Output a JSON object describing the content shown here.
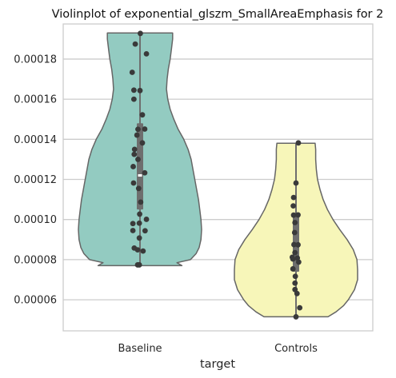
{
  "chart_data": {
    "type": "violin",
    "title": "Violinplot of exponential_glszm_SmallAreaEmphasis for 2",
    "xlabel": "target",
    "ylabel": "",
    "categories": [
      "Baseline",
      "Controls"
    ],
    "ylim": [
      4.45e-05,
      0.0001975
    ],
    "yticks": [
      6e-05,
      8e-05,
      0.0001,
      0.00012,
      0.00014,
      0.00016,
      0.00018
    ],
    "ytick_labels": [
      "0.00006",
      "0.00008",
      "0.00010",
      "0.00012",
      "0.00014",
      "0.00016",
      "0.00018"
    ],
    "grid": "y",
    "colors": {
      "Baseline": "#93cbc1",
      "Controls": "#f7f6b9",
      "outline": "#666666",
      "points": "#3a3a3a",
      "box": "#6e6e6e",
      "median": "#ffffff",
      "grid": "#cccccc"
    },
    "series": [
      {
        "name": "Baseline",
        "median": 0.000122,
        "q1": 0.000105,
        "q3": 0.000148,
        "whisker_low": 7.7e-05,
        "whisker_high": 0.000193,
        "cut_low": 7.7e-05,
        "cut_high": 0.000193,
        "profile": [
          [
            7.7e-05,
            0.68
          ],
          [
            7.85e-05,
            0.6
          ],
          [
            8e-05,
            0.82
          ],
          [
            8.3e-05,
            0.91
          ],
          [
            8.6e-05,
            0.96
          ],
          [
            9e-05,
            0.99
          ],
          [
            9.5e-05,
            1.0
          ],
          [
            0.0001,
            0.99
          ],
          [
            0.000105,
            0.97
          ],
          [
            0.00011,
            0.95
          ],
          [
            0.000115,
            0.92
          ],
          [
            0.00012,
            0.89
          ],
          [
            0.000125,
            0.86
          ],
          [
            0.00013,
            0.83
          ],
          [
            0.000135,
            0.78
          ],
          [
            0.00014,
            0.71
          ],
          [
            0.000145,
            0.62
          ],
          [
            0.00015,
            0.55
          ],
          [
            0.000155,
            0.49
          ],
          [
            0.00016,
            0.45
          ],
          [
            0.000165,
            0.43
          ],
          [
            0.00017,
            0.44
          ],
          [
            0.000175,
            0.46
          ],
          [
            0.00018,
            0.49
          ],
          [
            0.000185,
            0.51
          ],
          [
            0.00019,
            0.53
          ],
          [
            0.000193,
            0.53
          ]
        ],
        "points": [
          [
            0.01,
            0.0001928
          ],
          [
            -0.14,
            0.0001875
          ],
          [
            0.19,
            0.0001826
          ],
          [
            -0.23,
            0.0001734
          ],
          [
            -0.18,
            0.0001645
          ],
          [
            0.0,
            0.0001643
          ],
          [
            -0.18,
            0.00016
          ],
          [
            0.07,
            0.0001522
          ],
          [
            -0.06,
            0.000145
          ],
          [
            0.14,
            0.0001451
          ],
          [
            -0.09,
            0.0001421
          ],
          [
            0.07,
            0.0001382
          ],
          [
            -0.16,
            0.000135
          ],
          [
            -0.17,
            0.0001325
          ],
          [
            -0.06,
            0.00013
          ],
          [
            -0.2,
            0.0001264
          ],
          [
            0.14,
            0.0001233
          ],
          [
            -0.19,
            0.0001182
          ],
          [
            -0.04,
            0.0001155
          ],
          [
            0.02,
            0.0001087
          ],
          [
            -0.01,
            0.0001027
          ],
          [
            0.19,
            0.0001001
          ],
          [
            -0.02,
            9.82e-05
          ],
          [
            -0.21,
            9.8e-05
          ],
          [
            -0.21,
            9.45e-05
          ],
          [
            0.15,
            9.44e-05
          ],
          [
            -0.02,
            9.08e-05
          ],
          [
            -0.17,
            8.58e-05
          ],
          [
            -0.07,
            8.49e-05
          ],
          [
            0.09,
            8.43e-05
          ],
          [
            -0.07,
            7.74e-05
          ],
          [
            -0.02,
            7.74e-05
          ]
        ]
      },
      {
        "name": "Controls",
        "median": 8.1e-05,
        "q1": 7.4e-05,
        "q3": 0.000103,
        "whisker_low": 5.15e-05,
        "whisker_high": 0.000138,
        "cut_low": 5.15e-05,
        "cut_high": 0.000138,
        "profile": [
          [
            5.15e-05,
            0.52
          ],
          [
            5.4e-05,
            0.65
          ],
          [
            5.7e-05,
            0.77
          ],
          [
            6e-05,
            0.85
          ],
          [
            6.5e-05,
            0.95
          ],
          [
            7e-05,
            1.0
          ],
          [
            7.5e-05,
            1.0
          ],
          [
            8e-05,
            0.99
          ],
          [
            8.5e-05,
            0.93
          ],
          [
            9e-05,
            0.83
          ],
          [
            9.5e-05,
            0.71
          ],
          [
            0.0001,
            0.6
          ],
          [
            0.000105,
            0.51
          ],
          [
            0.00011,
            0.44
          ],
          [
            0.000115,
            0.39
          ],
          [
            0.00012,
            0.35
          ],
          [
            0.000125,
            0.33
          ],
          [
            0.00013,
            0.32
          ],
          [
            0.000135,
            0.32
          ],
          [
            0.000138,
            0.31
          ]
        ],
        "points": [
          [
            0.07,
            0.0001382
          ],
          [
            0.0,
            0.0001182
          ],
          [
            -0.07,
            0.000111
          ],
          [
            -0.08,
            0.0001068
          ],
          [
            -0.07,
            0.0001022
          ],
          [
            0.06,
            0.0001023
          ],
          [
            -0.03,
            9.85e-05
          ],
          [
            -0.04,
            9.35e-05
          ],
          [
            -0.06,
            8.75e-05
          ],
          [
            0.06,
            8.74e-05
          ],
          [
            -0.03,
            8.35e-05
          ],
          [
            -0.11,
            8.12e-05
          ],
          [
            -0.09,
            8.03e-05
          ],
          [
            0.08,
            7.88e-05
          ],
          [
            0.04,
            8.08e-05
          ],
          [
            -0.09,
            7.54e-05
          ],
          [
            -0.02,
            7.17e-05
          ],
          [
            -0.03,
            6.83e-05
          ],
          [
            -0.03,
            6.51e-05
          ],
          [
            0.03,
            6.31e-05
          ],
          [
            0.11,
            5.6e-05
          ],
          [
            0.0,
            5.15e-05
          ]
        ]
      }
    ]
  }
}
